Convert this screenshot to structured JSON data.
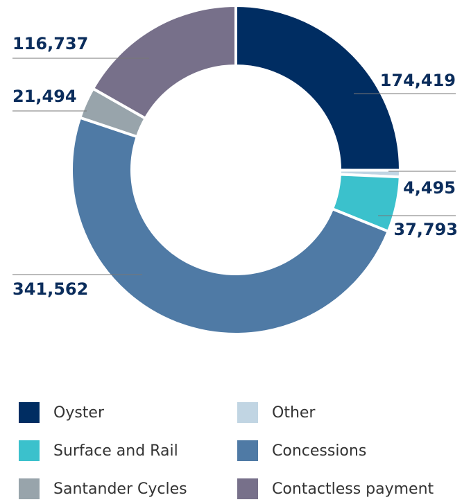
{
  "chart_data": {
    "type": "donut",
    "categories": [
      "Oyster",
      "Other",
      "Surface and Rail",
      "Concessions",
      "Santander Cycles",
      "Contactless payment"
    ],
    "values": [
      174419,
      4495,
      37793,
      341562,
      21494,
      116737
    ],
    "value_labels": [
      "174,419",
      "4,495",
      "37,793",
      "341,562",
      "21,494",
      "116,737"
    ],
    "colors": [
      "#002d62",
      "#c1d5e3",
      "#3bc1cc",
      "#4f7aa5",
      "#98a4ab",
      "#77708a"
    ]
  }
}
